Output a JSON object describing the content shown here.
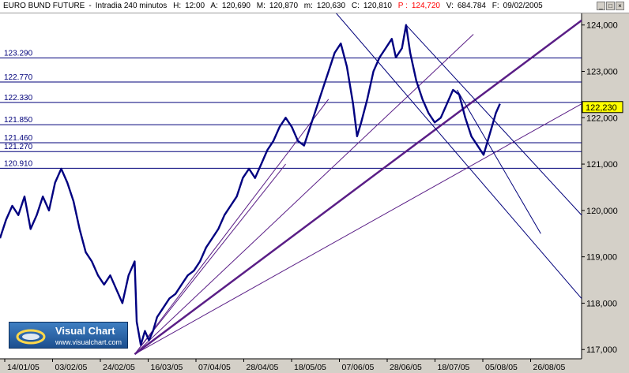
{
  "header": {
    "instrument": "EURO BUND FUTURE",
    "timeframe": "Intradia 240 minutos",
    "high_label": "H:",
    "high": "12:00",
    "a_label": "A:",
    "a": "120,690",
    "max_label": "M:",
    "max": "120,870",
    "min_label": "m:",
    "min": "120,630",
    "close_label": "C:",
    "close": "120,810",
    "p_label": "P :",
    "p": "124,720",
    "vol_label": "V:",
    "vol": "684.784",
    "date_label": "F:",
    "date": "09/02/2005"
  },
  "window_buttons": [
    "_",
    "□",
    "×"
  ],
  "colors": {
    "price": "#000080",
    "level_lines": "#00007a",
    "fan_lines": "#5a1e86",
    "channel_lines": "#00007a",
    "background": "#d4d0c8",
    "chart_area": "#ffffff",
    "last_price_marker": "#ffff00"
  },
  "chart_data": {
    "type": "line",
    "title": "EURO BUND FUTURE",
    "xlabel": "",
    "ylabel": "",
    "ylim": [
      116.8,
      124.25
    ],
    "y_ticks": [
      117.0,
      118.0,
      119.0,
      120.0,
      121.0,
      122.0,
      123.0,
      124.0
    ],
    "y_tick_labels": [
      "117,000",
      "118,000",
      "119,000",
      "120,000",
      "121,000",
      "122,000",
      "123,000",
      "124,000"
    ],
    "x_tick_labels": [
      "14/01/05",
      "03/02/05",
      "24/02/05",
      "16/03/05",
      "07/04/05",
      "28/04/05",
      "18/05/05",
      "07/06/05",
      "28/06/05",
      "18/07/05",
      "05/08/05",
      "26/08/05"
    ],
    "last_price": 122.23,
    "last_price_label": "122,230",
    "horizontal_levels": [
      {
        "label": "123.290",
        "value": 123.29
      },
      {
        "label": "122.770",
        "value": 122.77
      },
      {
        "label": "122.330",
        "value": 122.33
      },
      {
        "label": "121.850",
        "value": 121.85
      },
      {
        "label": "121.460",
        "value": 121.46
      },
      {
        "label": "121.270",
        "value": 121.27
      },
      {
        "label": "120.910",
        "value": 120.91
      }
    ],
    "price_path": [
      [
        0,
        119.4
      ],
      [
        3,
        119.8
      ],
      [
        6,
        120.1
      ],
      [
        9,
        119.9
      ],
      [
        12,
        120.3
      ],
      [
        15,
        119.6
      ],
      [
        18,
        119.9
      ],
      [
        21,
        120.3
      ],
      [
        24,
        120.0
      ],
      [
        27,
        120.6
      ],
      [
        30,
        120.9
      ],
      [
        33,
        120.6
      ],
      [
        36,
        120.2
      ],
      [
        39,
        119.6
      ],
      [
        42,
        119.1
      ],
      [
        45,
        118.9
      ],
      [
        48,
        118.6
      ],
      [
        51,
        118.4
      ],
      [
        54,
        118.6
      ],
      [
        57,
        118.3
      ],
      [
        60,
        118.0
      ],
      [
        63,
        118.6
      ],
      [
        66,
        118.9
      ],
      [
        67,
        117.6
      ],
      [
        69,
        117.1
      ],
      [
        71,
        117.4
      ],
      [
        73,
        117.2
      ],
      [
        75,
        117.4
      ],
      [
        77,
        117.7
      ],
      [
        80,
        117.9
      ],
      [
        83,
        118.1
      ],
      [
        86,
        118.2
      ],
      [
        89,
        118.4
      ],
      [
        92,
        118.6
      ],
      [
        95,
        118.7
      ],
      [
        98,
        118.9
      ],
      [
        101,
        119.2
      ],
      [
        104,
        119.4
      ],
      [
        107,
        119.6
      ],
      [
        110,
        119.9
      ],
      [
        113,
        120.1
      ],
      [
        116,
        120.3
      ],
      [
        119,
        120.7
      ],
      [
        122,
        120.9
      ],
      [
        125,
        120.7
      ],
      [
        128,
        121.0
      ],
      [
        131,
        121.3
      ],
      [
        134,
        121.5
      ],
      [
        137,
        121.8
      ],
      [
        140,
        122.0
      ],
      [
        143,
        121.8
      ],
      [
        146,
        121.5
      ],
      [
        149,
        121.4
      ],
      [
        152,
        121.8
      ],
      [
        155,
        122.2
      ],
      [
        158,
        122.6
      ],
      [
        161,
        123.0
      ],
      [
        164,
        123.4
      ],
      [
        167,
        123.6
      ],
      [
        170,
        123.1
      ],
      [
        173,
        122.3
      ],
      [
        175,
        121.6
      ],
      [
        177,
        121.9
      ],
      [
        180,
        122.4
      ],
      [
        183,
        123.0
      ],
      [
        186,
        123.3
      ],
      [
        189,
        123.5
      ],
      [
        192,
        123.7
      ],
      [
        194,
        123.3
      ],
      [
        197,
        123.5
      ],
      [
        199,
        124.0
      ],
      [
        201,
        123.4
      ],
      [
        204,
        122.8
      ],
      [
        207,
        122.4
      ],
      [
        210,
        122.1
      ],
      [
        213,
        121.9
      ],
      [
        216,
        122.0
      ],
      [
        219,
        122.3
      ],
      [
        222,
        122.6
      ],
      [
        225,
        122.5
      ],
      [
        228,
        122.0
      ],
      [
        231,
        121.6
      ],
      [
        234,
        121.4
      ],
      [
        237,
        121.2
      ],
      [
        239,
        121.5
      ],
      [
        241,
        121.8
      ],
      [
        243,
        122.1
      ],
      [
        245,
        122.3
      ]
    ],
    "fan_lines": [
      {
        "x1": 66,
        "y1": 116.9,
        "x2": 232,
        "y2": 123.8
      },
      {
        "x1": 66,
        "y1": 116.9,
        "x2": 285,
        "y2": 124.1
      },
      {
        "x1": 66,
        "y1": 116.9,
        "x2": 285,
        "y2": 122.3
      },
      {
        "x1": 66,
        "y1": 116.9,
        "x2": 161,
        "y2": 122.4
      },
      {
        "x1": 66,
        "y1": 116.9,
        "x2": 140,
        "y2": 121.0
      }
    ],
    "channel_lines": [
      {
        "x1": 158,
        "y1": 124.6,
        "x2": 285,
        "y2": 118.1
      },
      {
        "x1": 199,
        "y1": 124.0,
        "x2": 285,
        "y2": 119.9
      },
      {
        "x1": 224,
        "y1": 122.6,
        "x2": 265,
        "y2": 119.5
      }
    ]
  },
  "logo": {
    "title": "Visual Chart",
    "url": "www.visualchart.com"
  }
}
